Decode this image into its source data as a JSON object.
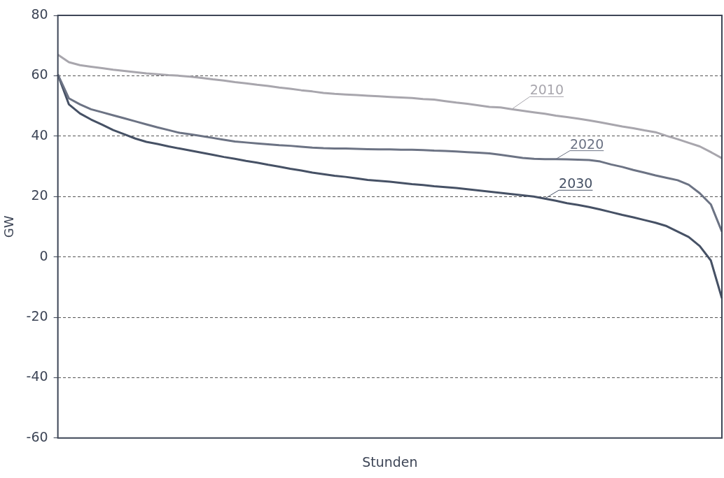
{
  "chart_data": {
    "type": "line",
    "xlabel": "Stunden",
    "ylabel": "GW",
    "ylim": [
      -60,
      80
    ],
    "yticks": [
      -60,
      -40,
      -20,
      0,
      20,
      40,
      60,
      80
    ],
    "grid": "y",
    "legend": false,
    "marker": "none",
    "line_style": "solid",
    "categories": [
      null,
      null,
      null,
      null,
      null,
      null,
      null,
      null,
      null,
      null,
      null,
      null,
      null,
      null,
      null,
      null,
      null,
      null,
      null,
      null,
      null,
      null,
      null,
      null,
      null,
      null,
      null,
      null,
      null,
      null,
      null,
      null,
      null,
      null,
      null,
      null,
      null,
      null,
      null,
      null,
      null,
      null,
      null,
      null,
      null,
      null,
      null,
      null,
      null,
      null,
      null,
      null,
      null,
      null,
      null,
      null,
      null,
      null,
      null,
      null,
      null
    ],
    "series": [
      {
        "name": "2010",
        "color": "#a8a6ad",
        "values": [
          67,
          64.5,
          63.5,
          63,
          62.5,
          62,
          61.6,
          61.2,
          60.8,
          60.5,
          60.2,
          60,
          59.7,
          59.3,
          58.8,
          58.4,
          57.9,
          57.5,
          57,
          56.6,
          56.1,
          55.7,
          55.2,
          54.8,
          54.3,
          54,
          53.8,
          53.6,
          53.4,
          53.2,
          53,
          52.8,
          52.6,
          52.3,
          52.1,
          51.6,
          51.1,
          50.7,
          50.2,
          49.7,
          49.5,
          48.9,
          48.4,
          47.9,
          47.4,
          46.8,
          46.3,
          45.8,
          45.2,
          44.6,
          43.9,
          43.2,
          42.6,
          41.9,
          41.3,
          40.1,
          39,
          37.8,
          36.6,
          34.7,
          32.7
        ]
      },
      {
        "name": "2020",
        "color": "#6c7384",
        "values": [
          60.4,
          52.5,
          50.5,
          48.9,
          47.9,
          46.9,
          45.9,
          44.9,
          43.9,
          42.9,
          42,
          41.1,
          40.6,
          40,
          39.4,
          38.8,
          38.2,
          37.9,
          37.6,
          37.3,
          37,
          36.8,
          36.5,
          36.2,
          36,
          35.9,
          35.9,
          35.8,
          35.7,
          35.6,
          35.6,
          35.5,
          35.5,
          35.4,
          35.2,
          35.1,
          34.9,
          34.7,
          34.5,
          34.3,
          33.8,
          33.3,
          32.8,
          32.5,
          32.4,
          32.4,
          32.3,
          32.2,
          32.1,
          31.6,
          30.6,
          29.8,
          28.8,
          27.9,
          27,
          26.2,
          25.4,
          23.9,
          21.1,
          17.4,
          8.4
        ]
      },
      {
        "name": "2030",
        "color": "#465165",
        "values": [
          60.4,
          50.5,
          47.5,
          45.5,
          43.8,
          42,
          40.6,
          39.2,
          38.1,
          37.4,
          36.6,
          35.9,
          35.2,
          34.5,
          33.8,
          33.1,
          32.5,
          31.8,
          31.2,
          30.5,
          29.9,
          29.2,
          28.6,
          27.9,
          27.4,
          26.9,
          26.5,
          26,
          25.5,
          25.2,
          24.9,
          24.5,
          24.1,
          23.8,
          23.4,
          23.1,
          22.8,
          22.4,
          22,
          21.6,
          21.2,
          20.8,
          20.4,
          20,
          19.3,
          18.6,
          17.8,
          17.2,
          16.5,
          15.7,
          14.8,
          13.9,
          13.1,
          12.2,
          11.3,
          10.2,
          8.4,
          6.6,
          3.6,
          -1.2,
          -13.7
        ]
      }
    ]
  }
}
